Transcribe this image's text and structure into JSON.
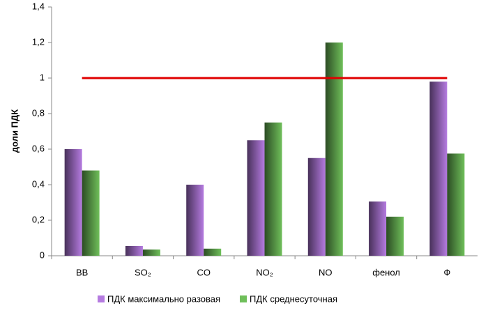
{
  "chart_data": {
    "type": "bar",
    "y_label": "доли ПДК",
    "categories": [
      "ВВ",
      "SO₂",
      "CO",
      "NO₂",
      "NO",
      "фенол",
      "Ф"
    ],
    "series": [
      {
        "name": "ПДК максимально разовая",
        "color": "#b57be0",
        "values": [
          0.6,
          0.055,
          0.4,
          0.65,
          0.55,
          0.305,
          0.98
        ]
      },
      {
        "name": "ПДК среднесуточная",
        "color": "#6fbf5a",
        "values": [
          0.48,
          0.035,
          0.04,
          0.75,
          1.2,
          0.22,
          0.575
        ]
      }
    ],
    "reference_line": {
      "value": 1,
      "color": "#e00000"
    },
    "ylim": [
      0,
      1.4
    ],
    "yticks": [
      0,
      {
        "value": 0.2,
        "label": "0,2"
      },
      {
        "value": 0.4,
        "label": "0,4"
      },
      {
        "value": 0.6,
        "label": "0,6"
      },
      {
        "value": 0.8,
        "label": "0,8"
      },
      1,
      {
        "value": 1.2,
        "label": "1,2"
      },
      {
        "value": 1.4,
        "label": "1,4"
      }
    ],
    "legend": "bottom"
  }
}
